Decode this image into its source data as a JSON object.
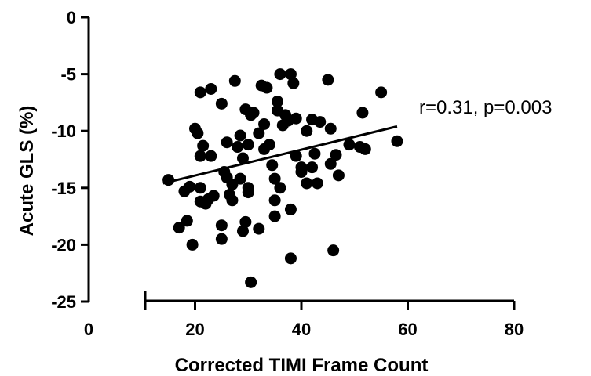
{
  "chart_data": {
    "type": "scatter",
    "title": "",
    "xlabel": "Corrected TIMI Frame Count",
    "ylabel": "Acute GLS (%)",
    "xlim": [
      0,
      80
    ],
    "ylim": [
      -25,
      0
    ],
    "xticks": [
      "0",
      "20",
      "40",
      "60",
      "80"
    ],
    "yticks": [
      "0",
      "-5",
      "-10",
      "-15",
      "-20",
      "-25"
    ],
    "annotation": "r=0.31, p=0.003",
    "grid": false,
    "legend": "none",
    "colors": {
      "points": "#000000",
      "line": "#000000",
      "axis": "#000000"
    },
    "fit_line": {
      "x": [
        14,
        58
      ],
      "y": [
        -14.6,
        -9.6
      ]
    },
    "points": [
      {
        "x": 15,
        "y": -14.3
      },
      {
        "x": 17,
        "y": -18.5
      },
      {
        "x": 18,
        "y": -15.3
      },
      {
        "x": 18.5,
        "y": -17.9
      },
      {
        "x": 19,
        "y": -14.9
      },
      {
        "x": 19.5,
        "y": -20.0
      },
      {
        "x": 20,
        "y": -9.8
      },
      {
        "x": 20.5,
        "y": -10.2
      },
      {
        "x": 21,
        "y": -15.0
      },
      {
        "x": 21,
        "y": -16.2
      },
      {
        "x": 21,
        "y": -12.2
      },
      {
        "x": 21,
        "y": -6.6
      },
      {
        "x": 21.5,
        "y": -11.3
      },
      {
        "x": 22,
        "y": -16.4
      },
      {
        "x": 22.5,
        "y": -16.0
      },
      {
        "x": 23,
        "y": -12.2
      },
      {
        "x": 23,
        "y": -6.3
      },
      {
        "x": 23.5,
        "y": -15.7
      },
      {
        "x": 25,
        "y": -7.6
      },
      {
        "x": 25,
        "y": -18.3
      },
      {
        "x": 25,
        "y": -19.5
      },
      {
        "x": 25.5,
        "y": -13.6
      },
      {
        "x": 26,
        "y": -11.0
      },
      {
        "x": 26,
        "y": -14.1
      },
      {
        "x": 26.5,
        "y": -15.6
      },
      {
        "x": 27,
        "y": -14.7
      },
      {
        "x": 27,
        "y": -16.1
      },
      {
        "x": 27.5,
        "y": -5.6
      },
      {
        "x": 28,
        "y": -11.4
      },
      {
        "x": 28.5,
        "y": -14.2
      },
      {
        "x": 28.5,
        "y": -10.4
      },
      {
        "x": 29,
        "y": -12.4
      },
      {
        "x": 29,
        "y": -18.8
      },
      {
        "x": 29.5,
        "y": -8.1
      },
      {
        "x": 29.5,
        "y": -18.0
      },
      {
        "x": 30,
        "y": -11.2
      },
      {
        "x": 30,
        "y": -15.0
      },
      {
        "x": 30,
        "y": -15.4
      },
      {
        "x": 30.5,
        "y": -8.6
      },
      {
        "x": 30.5,
        "y": -23.3
      },
      {
        "x": 31,
        "y": -8.4
      },
      {
        "x": 32,
        "y": -18.6
      },
      {
        "x": 32,
        "y": -10.2
      },
      {
        "x": 32.5,
        "y": -6.0
      },
      {
        "x": 33,
        "y": -11.6
      },
      {
        "x": 33,
        "y": -9.4
      },
      {
        "x": 33.5,
        "y": -6.2
      },
      {
        "x": 34,
        "y": -11.2
      },
      {
        "x": 34.5,
        "y": -13.0
      },
      {
        "x": 35,
        "y": -14.2
      },
      {
        "x": 35,
        "y": -16.1
      },
      {
        "x": 35,
        "y": -17.5
      },
      {
        "x": 35.5,
        "y": -7.4
      },
      {
        "x": 35.5,
        "y": -8.2
      },
      {
        "x": 36,
        "y": -5.0
      },
      {
        "x": 36,
        "y": -15.0
      },
      {
        "x": 36.5,
        "y": -9.5
      },
      {
        "x": 37,
        "y": -8.6
      },
      {
        "x": 37.5,
        "y": -9.1
      },
      {
        "x": 38,
        "y": -5.0
      },
      {
        "x": 38,
        "y": -16.9
      },
      {
        "x": 38,
        "y": -21.2
      },
      {
        "x": 38.5,
        "y": -5.8
      },
      {
        "x": 39,
        "y": -8.9
      },
      {
        "x": 39,
        "y": -12.2
      },
      {
        "x": 40,
        "y": -13.2
      },
      {
        "x": 40,
        "y": -13.6
      },
      {
        "x": 41,
        "y": -10.0
      },
      {
        "x": 41,
        "y": -14.6
      },
      {
        "x": 42,
        "y": -9.0
      },
      {
        "x": 42,
        "y": -13.2
      },
      {
        "x": 42.5,
        "y": -12.0
      },
      {
        "x": 43,
        "y": -14.6
      },
      {
        "x": 43.5,
        "y": -9.2
      },
      {
        "x": 45,
        "y": -5.5
      },
      {
        "x": 45.5,
        "y": -9.8
      },
      {
        "x": 45.5,
        "y": -12.9
      },
      {
        "x": 46,
        "y": -20.5
      },
      {
        "x": 46.5,
        "y": -12.1
      },
      {
        "x": 47,
        "y": -13.9
      },
      {
        "x": 49,
        "y": -11.2
      },
      {
        "x": 51,
        "y": -11.4
      },
      {
        "x": 51.5,
        "y": -8.4
      },
      {
        "x": 52,
        "y": -11.6
      },
      {
        "x": 55,
        "y": -6.6
      },
      {
        "x": 58,
        "y": -10.9
      }
    ]
  }
}
